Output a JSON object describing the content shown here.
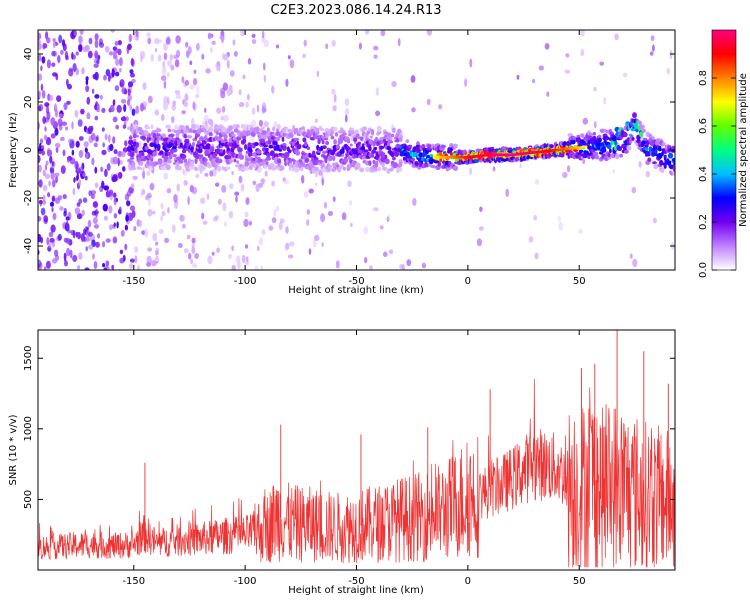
{
  "figure": {
    "title": "C2E3.2023.086.14.24.R13"
  },
  "chart_data": [
    {
      "type": "heatmap",
      "title": "",
      "xlabel": "Height of straight line (km)",
      "ylabel": "Frequency (Hz)",
      "xlim": [
        -193,
        93
      ],
      "ylim": [
        -50,
        50
      ],
      "xticks": [
        -150,
        -100,
        -50,
        0,
        50
      ],
      "yticks": [
        -40,
        -20,
        0,
        20,
        40
      ],
      "colorbar": {
        "label": "Normalized spectral amplitude",
        "range": [
          0.0,
          1.0
        ],
        "ticks": [
          0.0,
          0.2,
          0.4,
          0.6,
          0.8
        ],
        "colormap": [
          "#ffffff",
          "#c080ff",
          "#7000f0",
          "#0000ff",
          "#00c0ff",
          "#00ff80",
          "#60ff00",
          "#ffff00",
          "#ff8000",
          "#ff0000",
          "#ff0080"
        ]
      },
      "ridge": {
        "x": [
          -150,
          -120,
          -90,
          -60,
          -40,
          -30,
          -20,
          -10,
          0,
          10,
          20,
          30,
          40,
          50,
          60,
          70,
          75,
          80,
          90
        ],
        "y": [
          1,
          1,
          1,
          0,
          0,
          0,
          -3,
          -3,
          -3,
          -2,
          -2,
          -1,
          0,
          1,
          2,
          3,
          10,
          1,
          -4
        ]
      },
      "peak": {
        "x": [
          0,
          50
        ],
        "value": 1.0
      }
    },
    {
      "type": "line",
      "title": "",
      "xlabel": "Height of straight line (km)",
      "ylabel": "SNR (10 * v/v)",
      "xlim": [
        -193,
        93
      ],
      "ylim": [
        0,
        1700
      ],
      "xticks": [
        -150,
        -100,
        -50,
        0,
        50
      ],
      "yticks": [
        500,
        1000,
        1500
      ],
      "color": "#ee3333",
      "series": [
        {
          "x": [
            -193,
            -180,
            -170,
            -160,
            -150,
            -145,
            -140,
            -130,
            -120,
            -110,
            -100,
            -90,
            -85,
            -80,
            -70,
            -60,
            -50,
            -40,
            -30,
            -20,
            -10,
            0,
            10,
            20,
            30,
            40,
            50,
            55,
            60,
            65,
            70,
            80,
            93
          ],
          "y": [
            160,
            170,
            180,
            170,
            180,
            260,
            190,
            210,
            220,
            240,
            250,
            300,
            380,
            330,
            320,
            300,
            310,
            330,
            360,
            380,
            420,
            520,
            560,
            650,
            760,
            720,
            560,
            650,
            560,
            600,
            580,
            520,
            480
          ],
          "peaks": [
            {
              "x": -145,
              "y": 760
            },
            {
              "x": -84,
              "y": 1030
            },
            {
              "x": -48,
              "y": 960
            },
            {
              "x": -18,
              "y": 1010
            },
            {
              "x": 10,
              "y": 1280
            },
            {
              "x": 51,
              "y": 1430
            },
            {
              "x": 57,
              "y": 1460
            },
            {
              "x": 67,
              "y": 1700
            },
            {
              "x": 79,
              "y": 1550
            },
            {
              "x": 90,
              "y": 1320
            }
          ]
        }
      ]
    }
  ]
}
